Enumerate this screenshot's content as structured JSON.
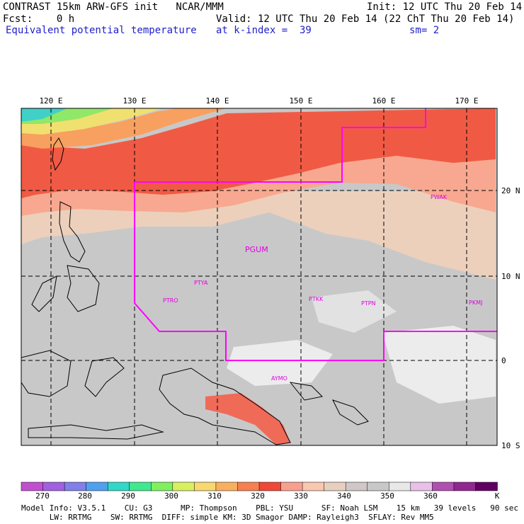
{
  "header": {
    "line1_left": "CONTRAST 15km ARW-GFS init   NCAR/MMM",
    "line1_right": "Init: 12 UTC Thu 20 Feb 14",
    "line2_left": "Fcst:    0 h",
    "line2_right": "Valid: 12 UTC Thu 20 Feb 14 (22 ChT Thu 20 Feb 14)",
    "line3_left": "Equivalent potential temperature",
    "line3_mid": "at k-index =  39",
    "line3_right": "sm= 2"
  },
  "map": {
    "lon_labels": [
      "120 E",
      "130 E",
      "140 E",
      "150 E",
      "160 E",
      "170 E"
    ],
    "lat_labels": [
      "20 N",
      "10 N",
      "0",
      "10 S"
    ],
    "stations": [
      {
        "id": "PGUM"
      },
      {
        "id": "PTYA"
      },
      {
        "id": "PTRO"
      },
      {
        "id": "PTKK"
      },
      {
        "id": "PTPN"
      },
      {
        "id": "PKMJ"
      },
      {
        "id": "PWAK"
      },
      {
        "id": "AYMO"
      }
    ]
  },
  "colorbar": {
    "labels": [
      "270",
      "280",
      "290",
      "300",
      "310",
      "320",
      "330",
      "340",
      "350",
      "360"
    ],
    "unit": "K",
    "colors": [
      "#c050d0",
      "#a060e0",
      "#8080e8",
      "#50a0f0",
      "#30d8c8",
      "#40e890",
      "#80f060",
      "#d8f060",
      "#f8d870",
      "#f8b060",
      "#f88050",
      "#f04838",
      "#f8a090",
      "#f8c8b0",
      "#e8d0c0",
      "#d0c8c8",
      "#c8c8c8",
      "#e8e8e8",
      "#e8c0e8",
      "#b050b0",
      "#902890",
      "#600060"
    ]
  },
  "footer": {
    "line1": "Model Info: V3.5.1    CU: G3      MP: Thompson    PBL: YSU      SF: Noah LSM    15 km   39 levels   90 sec",
    "line2": "      LW: RRTMG    SW: RRTMG  DIFF: simple KM: 3D Smagor DAMP: Rayleigh3  SFLAY: Rev MM5"
  }
}
